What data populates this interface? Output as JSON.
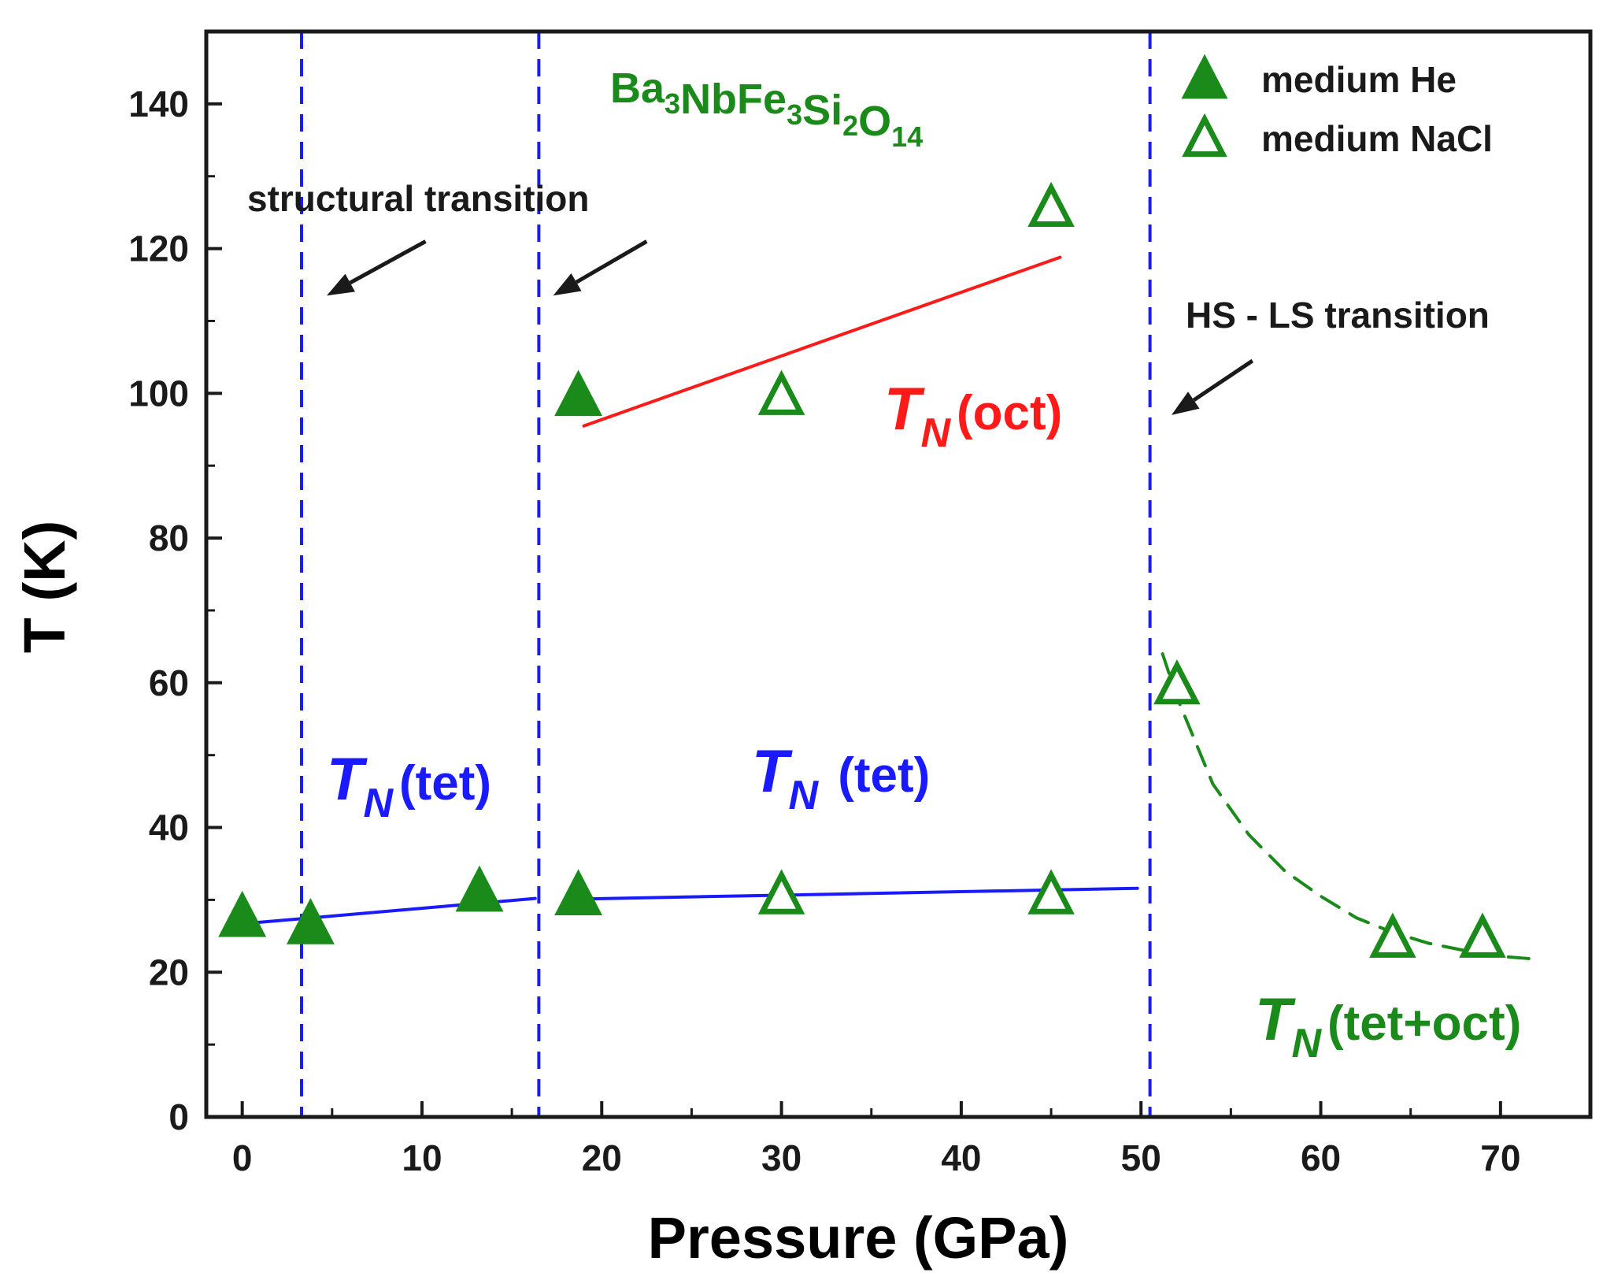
{
  "chart_data": {
    "type": "scatter",
    "title": "",
    "compound": {
      "parts": [
        {
          "text": "Ba",
          "sub": "3"
        },
        {
          "text": "NbFe",
          "sub": "3"
        },
        {
          "text": "Si",
          "sub": "2"
        },
        {
          "text": "O",
          "sub": "14"
        }
      ],
      "color": "#1a8a1a"
    },
    "xlabel": "Pressure (GPa)",
    "ylabel": "T (K)",
    "xlim": [
      -2,
      75
    ],
    "ylim": [
      0,
      150
    ],
    "x_ticks": [
      0,
      10,
      20,
      30,
      40,
      50,
      60,
      70
    ],
    "y_ticks": [
      0,
      20,
      40,
      60,
      80,
      100,
      120,
      140
    ],
    "series": [
      {
        "name": "medium He",
        "marker": "filled-triangle",
        "color": "#1a8a1a",
        "points": [
          [
            0,
            27.5
          ],
          [
            3.8,
            26.5
          ],
          [
            13.2,
            31
          ],
          [
            18.7,
            30.5
          ],
          [
            18.7,
            99.5
          ]
        ]
      },
      {
        "name": "medium NaCl",
        "marker": "open-triangle",
        "color": "#1a8a1a",
        "points": [
          [
            30,
            30.5
          ],
          [
            45,
            30.5
          ],
          [
            30,
            99.5
          ],
          [
            45,
            125.5
          ],
          [
            52,
            59.5
          ],
          [
            64,
            24.5
          ],
          [
            69,
            24.5
          ]
        ]
      }
    ],
    "fit_lines": [
      {
        "name": "tet-low",
        "color": "#1a1aff",
        "style": "solid",
        "points": [
          [
            0.5,
            26.8
          ],
          [
            16.3,
            30.2
          ]
        ]
      },
      {
        "name": "tet-high",
        "color": "#1a1aff",
        "style": "solid",
        "points": [
          [
            18.5,
            30.1
          ],
          [
            49.8,
            31.6
          ]
        ]
      },
      {
        "name": "oct",
        "color": "#ff1a1a",
        "style": "solid",
        "points": [
          [
            19,
            95.5
          ],
          [
            45.5,
            118.8
          ]
        ]
      },
      {
        "name": "tet+oct",
        "color": "#1a8a1a",
        "style": "dashed",
        "points": [
          [
            51.2,
            64
          ],
          [
            52,
            58
          ],
          [
            54,
            46
          ],
          [
            56,
            39
          ],
          [
            58,
            34
          ],
          [
            60,
            30.5
          ],
          [
            62,
            27.5
          ],
          [
            64,
            25.5
          ],
          [
            66,
            24
          ],
          [
            68,
            23
          ],
          [
            70,
            22.2
          ],
          [
            72,
            21.8
          ]
        ]
      }
    ],
    "transition_lines": [
      {
        "x": 3.3,
        "color": "#1a1aff"
      },
      {
        "x": 16.5,
        "color": "#1a1aff"
      },
      {
        "x": 50.5,
        "color": "#1a1aff"
      }
    ],
    "annotations": {
      "structural_transition": "structural transition",
      "hs_ls_transition": "HS - LS transition"
    },
    "arrows": [
      {
        "from": [
          10.2,
          121
        ],
        "to": [
          4.7,
          113.5
        ]
      },
      {
        "from": [
          22.5,
          121
        ],
        "to": [
          17.3,
          113.5
        ]
      },
      {
        "from": [
          56.2,
          104.5
        ],
        "to": [
          51.7,
          97
        ]
      }
    ],
    "phase_labels": [
      {
        "symbol": "T",
        "sub": "N",
        "suffix": "(tet)",
        "color": "#1a1aff"
      },
      {
        "symbol": "T",
        "sub": "N",
        "suffix": " (tet)",
        "color": "#1a1aff"
      },
      {
        "symbol": "T",
        "sub": "N",
        "suffix": "(oct)",
        "color": "#ff1a1a"
      },
      {
        "symbol": "T",
        "sub": "N",
        "suffix": "(tet+oct)",
        "color": "#1a8a1a"
      }
    ],
    "legend": {
      "position": "top-right",
      "entries": [
        "medium He",
        "medium NaCl"
      ]
    }
  }
}
